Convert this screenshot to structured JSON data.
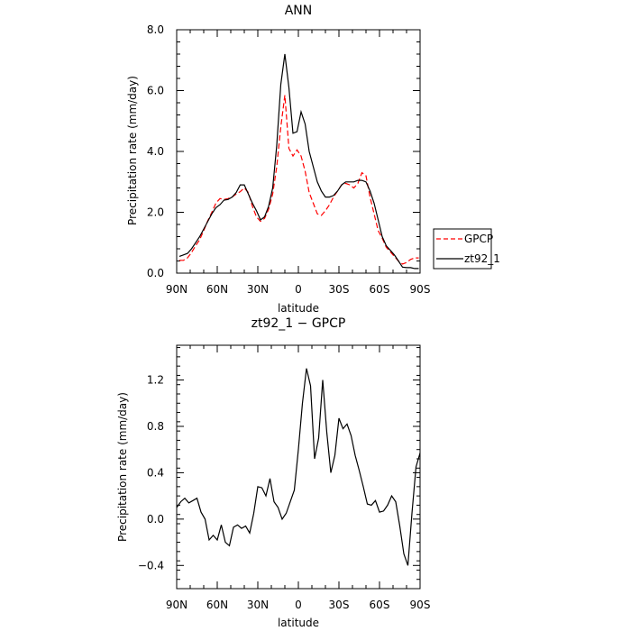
{
  "chart_data": [
    {
      "type": "line",
      "title": "ANN",
      "xlabel": "latitude",
      "ylabel": "Precipitation rate  (mm/day)",
      "x_ticks": [
        "90N",
        "60N",
        "30N",
        "0",
        "30S",
        "60S",
        "90S"
      ],
      "x_tick_values": [
        90,
        60,
        30,
        0,
        -30,
        -60,
        -90
      ],
      "xlim": [
        90,
        -90
      ],
      "y_ticks": [
        "0.0",
        "2.0",
        "4.0",
        "6.0",
        "8.0"
      ],
      "y_tick_values": [
        0,
        2,
        4,
        6,
        8
      ],
      "ylim": [
        0,
        8
      ],
      "legend_position": "right",
      "series": [
        {
          "name": "GPCP",
          "color": "#ff0000",
          "dash": "dashed",
          "x": [
            88,
            85,
            82,
            79,
            76,
            73,
            70,
            67,
            64,
            61,
            58,
            55,
            52,
            49,
            46,
            43,
            40,
            37,
            34,
            31,
            28,
            25,
            22,
            19,
            16,
            13,
            10,
            7,
            4,
            1,
            -2,
            -5,
            -8,
            -11,
            -14,
            -17,
            -20,
            -23,
            -26,
            -29,
            -32,
            -35,
            -38,
            -41,
            -44,
            -47,
            -50,
            -53,
            -56,
            -59,
            -62,
            -65,
            -68,
            -71,
            -74,
            -77,
            -80,
            -83,
            -86,
            -89
          ],
          "y": [
            0.42,
            0.42,
            0.5,
            0.68,
            0.9,
            1.1,
            1.4,
            1.72,
            2.0,
            2.3,
            2.45,
            2.42,
            2.45,
            2.5,
            2.6,
            2.68,
            2.8,
            2.65,
            2.2,
            1.85,
            1.7,
            1.8,
            2.1,
            2.6,
            3.5,
            4.8,
            5.85,
            4.1,
            3.85,
            4.05,
            3.85,
            3.35,
            2.65,
            2.3,
            1.95,
            1.9,
            2.05,
            2.25,
            2.5,
            2.7,
            2.9,
            2.95,
            2.9,
            2.8,
            2.95,
            3.3,
            3.2,
            2.5,
            1.95,
            1.4,
            1.15,
            0.85,
            0.7,
            0.55,
            0.4,
            0.3,
            0.35,
            0.45,
            0.5,
            0.5
          ]
        },
        {
          "name": "zt92_1",
          "color": "#000000",
          "dash": "solid",
          "x": [
            88,
            85,
            82,
            79,
            76,
            73,
            70,
            67,
            64,
            61,
            58,
            55,
            52,
            49,
            46,
            43,
            40,
            37,
            34,
            31,
            28,
            25,
            22,
            19,
            16,
            13,
            10,
            7,
            4,
            1,
            -2,
            -5,
            -8,
            -11,
            -14,
            -17,
            -20,
            -23,
            -26,
            -29,
            -32,
            -35,
            -38,
            -41,
            -44,
            -47,
            -50,
            -53,
            -56,
            -59,
            -62,
            -65,
            -68,
            -71,
            -74,
            -77,
            -80,
            -83,
            -86,
            -89
          ],
          "y": [
            0.55,
            0.6,
            0.65,
            0.8,
            1.0,
            1.2,
            1.45,
            1.7,
            1.95,
            2.15,
            2.25,
            2.4,
            2.42,
            2.5,
            2.65,
            2.9,
            2.9,
            2.6,
            2.3,
            2.05,
            1.75,
            1.85,
            2.2,
            2.8,
            4.2,
            6.2,
            7.2,
            6.1,
            4.6,
            4.65,
            5.3,
            4.9,
            4.0,
            3.5,
            3.0,
            2.7,
            2.5,
            2.5,
            2.55,
            2.7,
            2.9,
            3.0,
            3.0,
            3.0,
            3.05,
            3.05,
            3.0,
            2.7,
            2.3,
            1.75,
            1.2,
            0.9,
            0.75,
            0.6,
            0.4,
            0.2,
            0.18,
            0.18,
            0.15,
            0.15
          ]
        }
      ]
    },
    {
      "type": "line",
      "title": "zt92_1  −  GPCP",
      "xlabel": "latitude",
      "ylabel": "Precipitation rate  (mm/day)",
      "x_ticks": [
        "90N",
        "60N",
        "30N",
        "0",
        "30S",
        "60S",
        "90S"
      ],
      "x_tick_values": [
        90,
        60,
        30,
        0,
        -30,
        -60,
        -90
      ],
      "xlim": [
        90,
        -90
      ],
      "y_ticks": [
        "−0.4",
        "0.0",
        "0.4",
        "0.8",
        "1.2"
      ],
      "y_tick_values": [
        -0.4,
        0,
        0.4,
        0.8,
        1.2
      ],
      "ylim": [
        -0.6,
        1.5
      ],
      "series": [
        {
          "color": "#000000",
          "dash": "solid",
          "x": [
            90,
            87,
            84,
            81,
            78,
            75,
            72,
            69,
            66,
            63,
            60,
            57,
            54,
            51,
            48,
            45,
            42,
            39,
            36,
            33,
            30,
            27,
            24,
            21,
            18,
            15,
            12,
            9,
            6,
            3,
            0,
            -3,
            -6,
            -9,
            -12,
            -15,
            -18,
            -21,
            -24,
            -27,
            -30,
            -33,
            -36,
            -39,
            -42,
            -45,
            -48,
            -51,
            -54,
            -57,
            -60,
            -63,
            -66,
            -69,
            -72,
            -75,
            -78,
            -81,
            -84,
            -87,
            -90
          ],
          "y": [
            0.1,
            0.15,
            0.18,
            0.14,
            0.16,
            0.18,
            0.06,
            0.0,
            -0.18,
            -0.14,
            -0.18,
            -0.05,
            -0.2,
            -0.23,
            -0.07,
            -0.05,
            -0.08,
            -0.06,
            -0.12,
            0.05,
            0.28,
            0.27,
            0.2,
            0.35,
            0.15,
            0.1,
            0.0,
            0.05,
            0.15,
            0.25,
            0.6,
            1.0,
            1.3,
            1.15,
            0.52,
            0.7,
            1.2,
            0.75,
            0.4,
            0.55,
            0.87,
            0.78,
            0.82,
            0.72,
            0.55,
            0.42,
            0.28,
            0.13,
            0.12,
            0.16,
            0.06,
            0.07,
            0.12,
            0.2,
            0.15,
            -0.06,
            -0.3,
            -0.4,
            0.05,
            0.45,
            0.57
          ]
        }
      ]
    }
  ],
  "legend": {
    "items": [
      {
        "label": "GPCP",
        "color": "#ff0000",
        "dash": "dashed"
      },
      {
        "label": "zt92_1",
        "color": "#000000",
        "dash": "solid"
      }
    ]
  }
}
